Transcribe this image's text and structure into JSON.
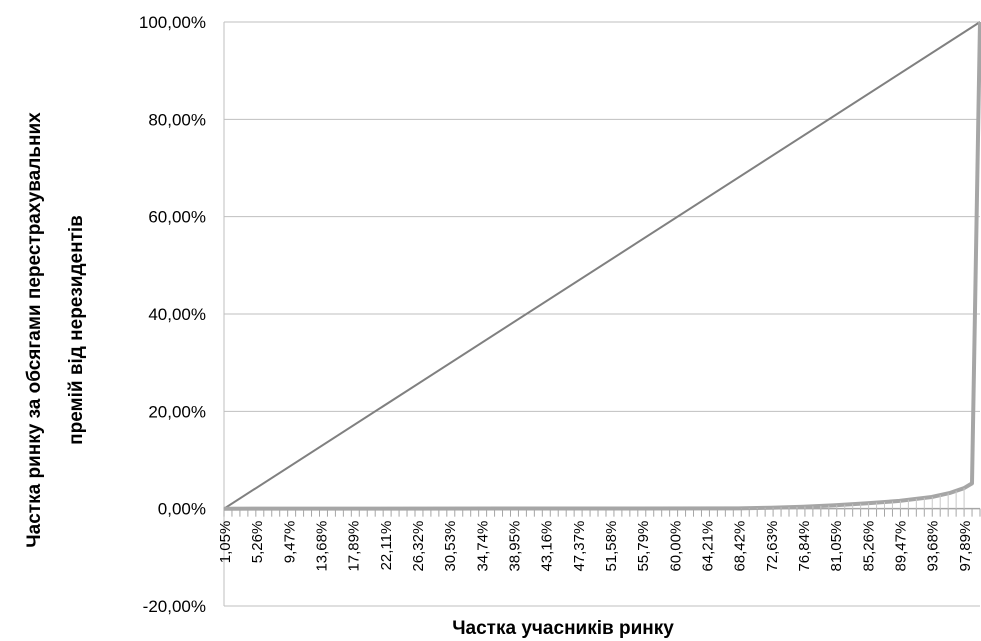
{
  "chart_data": {
    "type": "line",
    "title": "",
    "xlabel": "Частка учасників ринку",
    "ylabel_line1": "Частка ринку за обсягами перестрахувальних",
    "ylabel_line2": "премій від нерезидентів",
    "ylim": [
      -20,
      100
    ],
    "y_ticks": [
      "100,00%",
      "80,00%",
      "60,00%",
      "40,00%",
      "20,00%",
      "0,00%",
      "-20,00%"
    ],
    "x_tick_labels": [
      "1,05%",
      "5,26%",
      "9,47%",
      "13,68%",
      "17,89%",
      "22,11%",
      "26,32%",
      "30,53%",
      "34,74%",
      "38,95%",
      "43,16%",
      "47,37%",
      "51,58%",
      "55,79%",
      "60,00%",
      "64,21%",
      "68,42%",
      "72,63%",
      "76,84%",
      "81,05%",
      "85,26%",
      "89,47%",
      "93,68%",
      "97,89%"
    ],
    "grid": true,
    "legend": "none",
    "series": [
      {
        "role": "equality-line",
        "color": "#808080",
        "x": [
          1.05,
          100
        ],
        "values": [
          0,
          100
        ]
      },
      {
        "role": "lorenz-curve",
        "color": "#a6a6a6",
        "x": [
          1.05,
          68.42,
          72.63,
          76.84,
          81.05,
          85.26,
          89.47,
          93.68,
          96.0,
          97.89,
          98.95,
          100
        ],
        "values": [
          0,
          0.05,
          0.2,
          0.4,
          0.7,
          1.1,
          1.6,
          2.4,
          3.2,
          4.2,
          5.2,
          100
        ]
      }
    ]
  }
}
